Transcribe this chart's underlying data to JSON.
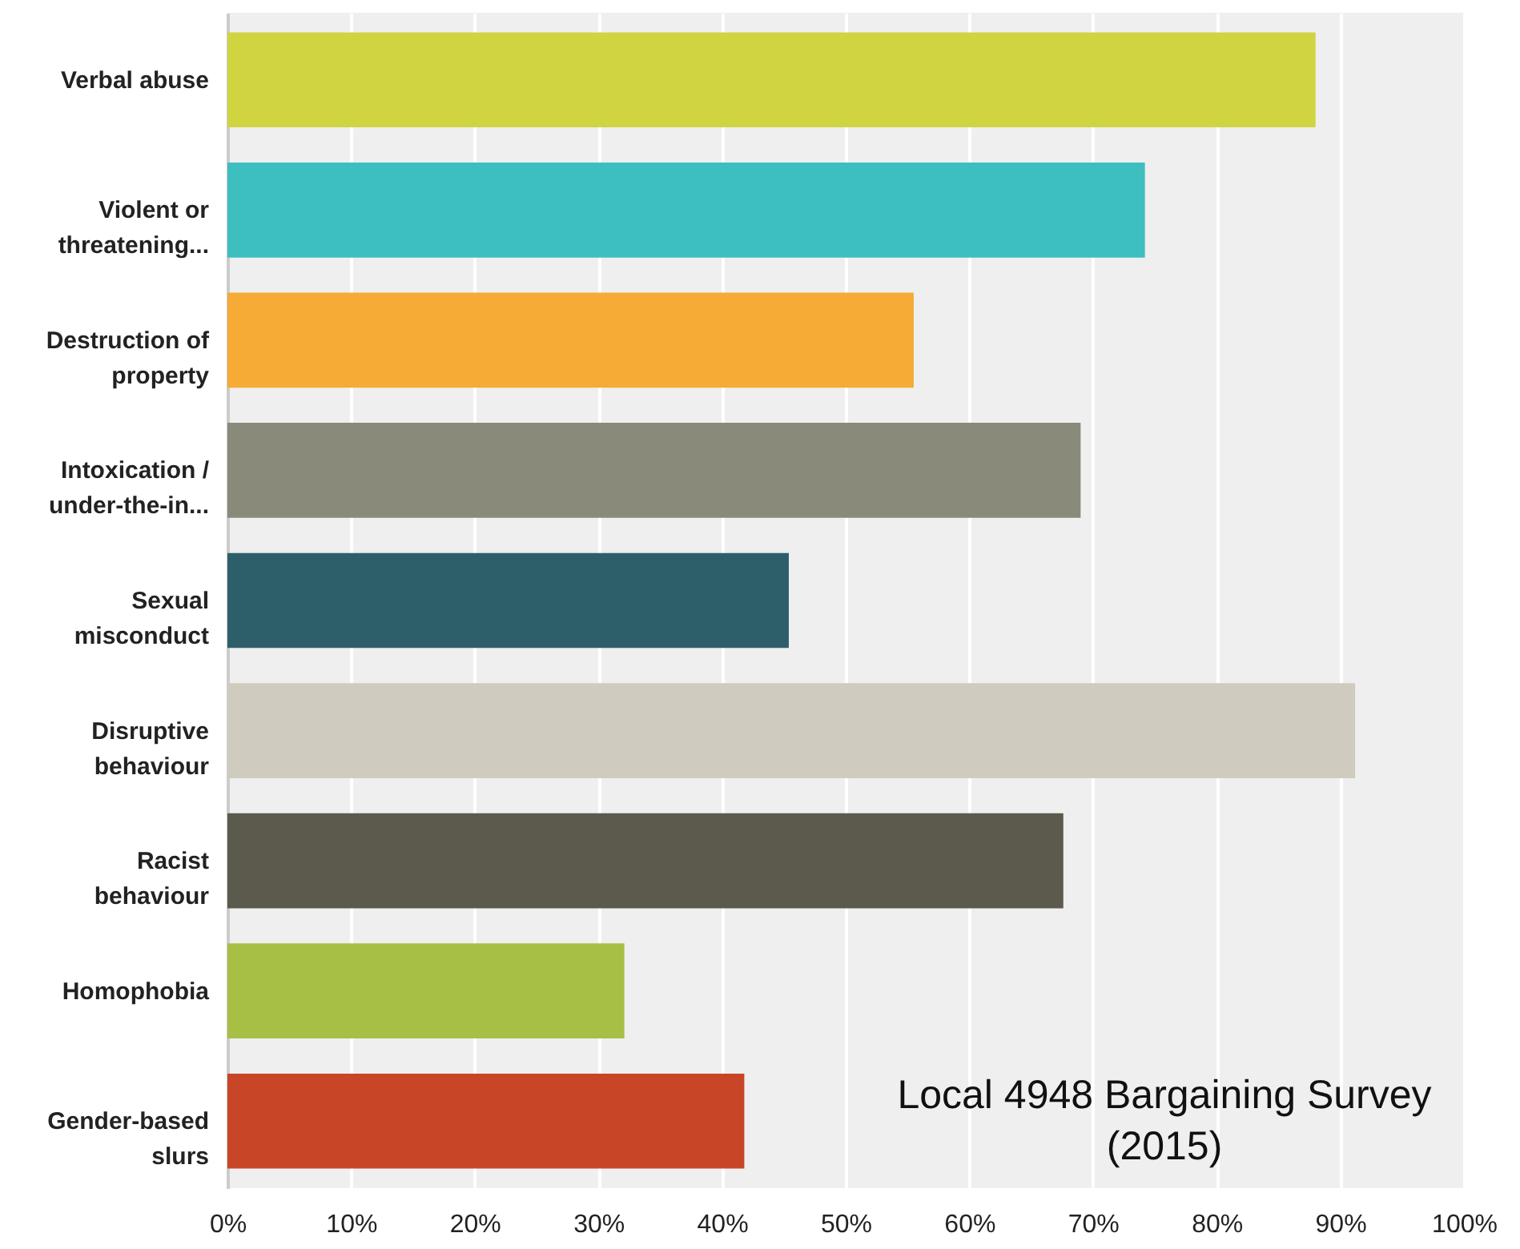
{
  "chart_data": {
    "type": "bar",
    "orientation": "horizontal",
    "categories": [
      "Verbal abuse",
      "Violent or\nthreatening...",
      "Destruction of\nproperty",
      "Intoxication /\nunder-the-in...",
      "Sexual\nmisconduct",
      "Disruptive\nbehaviour",
      "Racist\nbehaviour",
      "Homophobia",
      "Gender-based\nslurs"
    ],
    "values": [
      88.0,
      74.2,
      55.5,
      69.0,
      45.4,
      91.2,
      67.6,
      32.1,
      41.8
    ],
    "colors": [
      "#cfd440",
      "#3dbfc0",
      "#f5ab35",
      "#8a8a7b",
      "#2d5f6b",
      "#cfccbf",
      "#5b5a4c",
      "#a8bf45",
      "#c84627"
    ],
    "xlim": [
      0,
      100
    ],
    "xticks": [
      {
        "value": 0,
        "label": "0%"
      },
      {
        "value": 10,
        "label": "10%"
      },
      {
        "value": 20,
        "label": "20%"
      },
      {
        "value": 30,
        "label": "30%"
      },
      {
        "value": 40,
        "label": "40%"
      },
      {
        "value": 50,
        "label": "50%"
      },
      {
        "value": 60,
        "label": "60%"
      },
      {
        "value": 70,
        "label": "70%"
      },
      {
        "value": 80,
        "label": "80%"
      },
      {
        "value": 90,
        "label": "90%"
      },
      {
        "value": 100,
        "label": "100%"
      }
    ],
    "grid": "x",
    "annotations": [
      "Local 4948 Bargaining Survey\n(2015)"
    ]
  }
}
